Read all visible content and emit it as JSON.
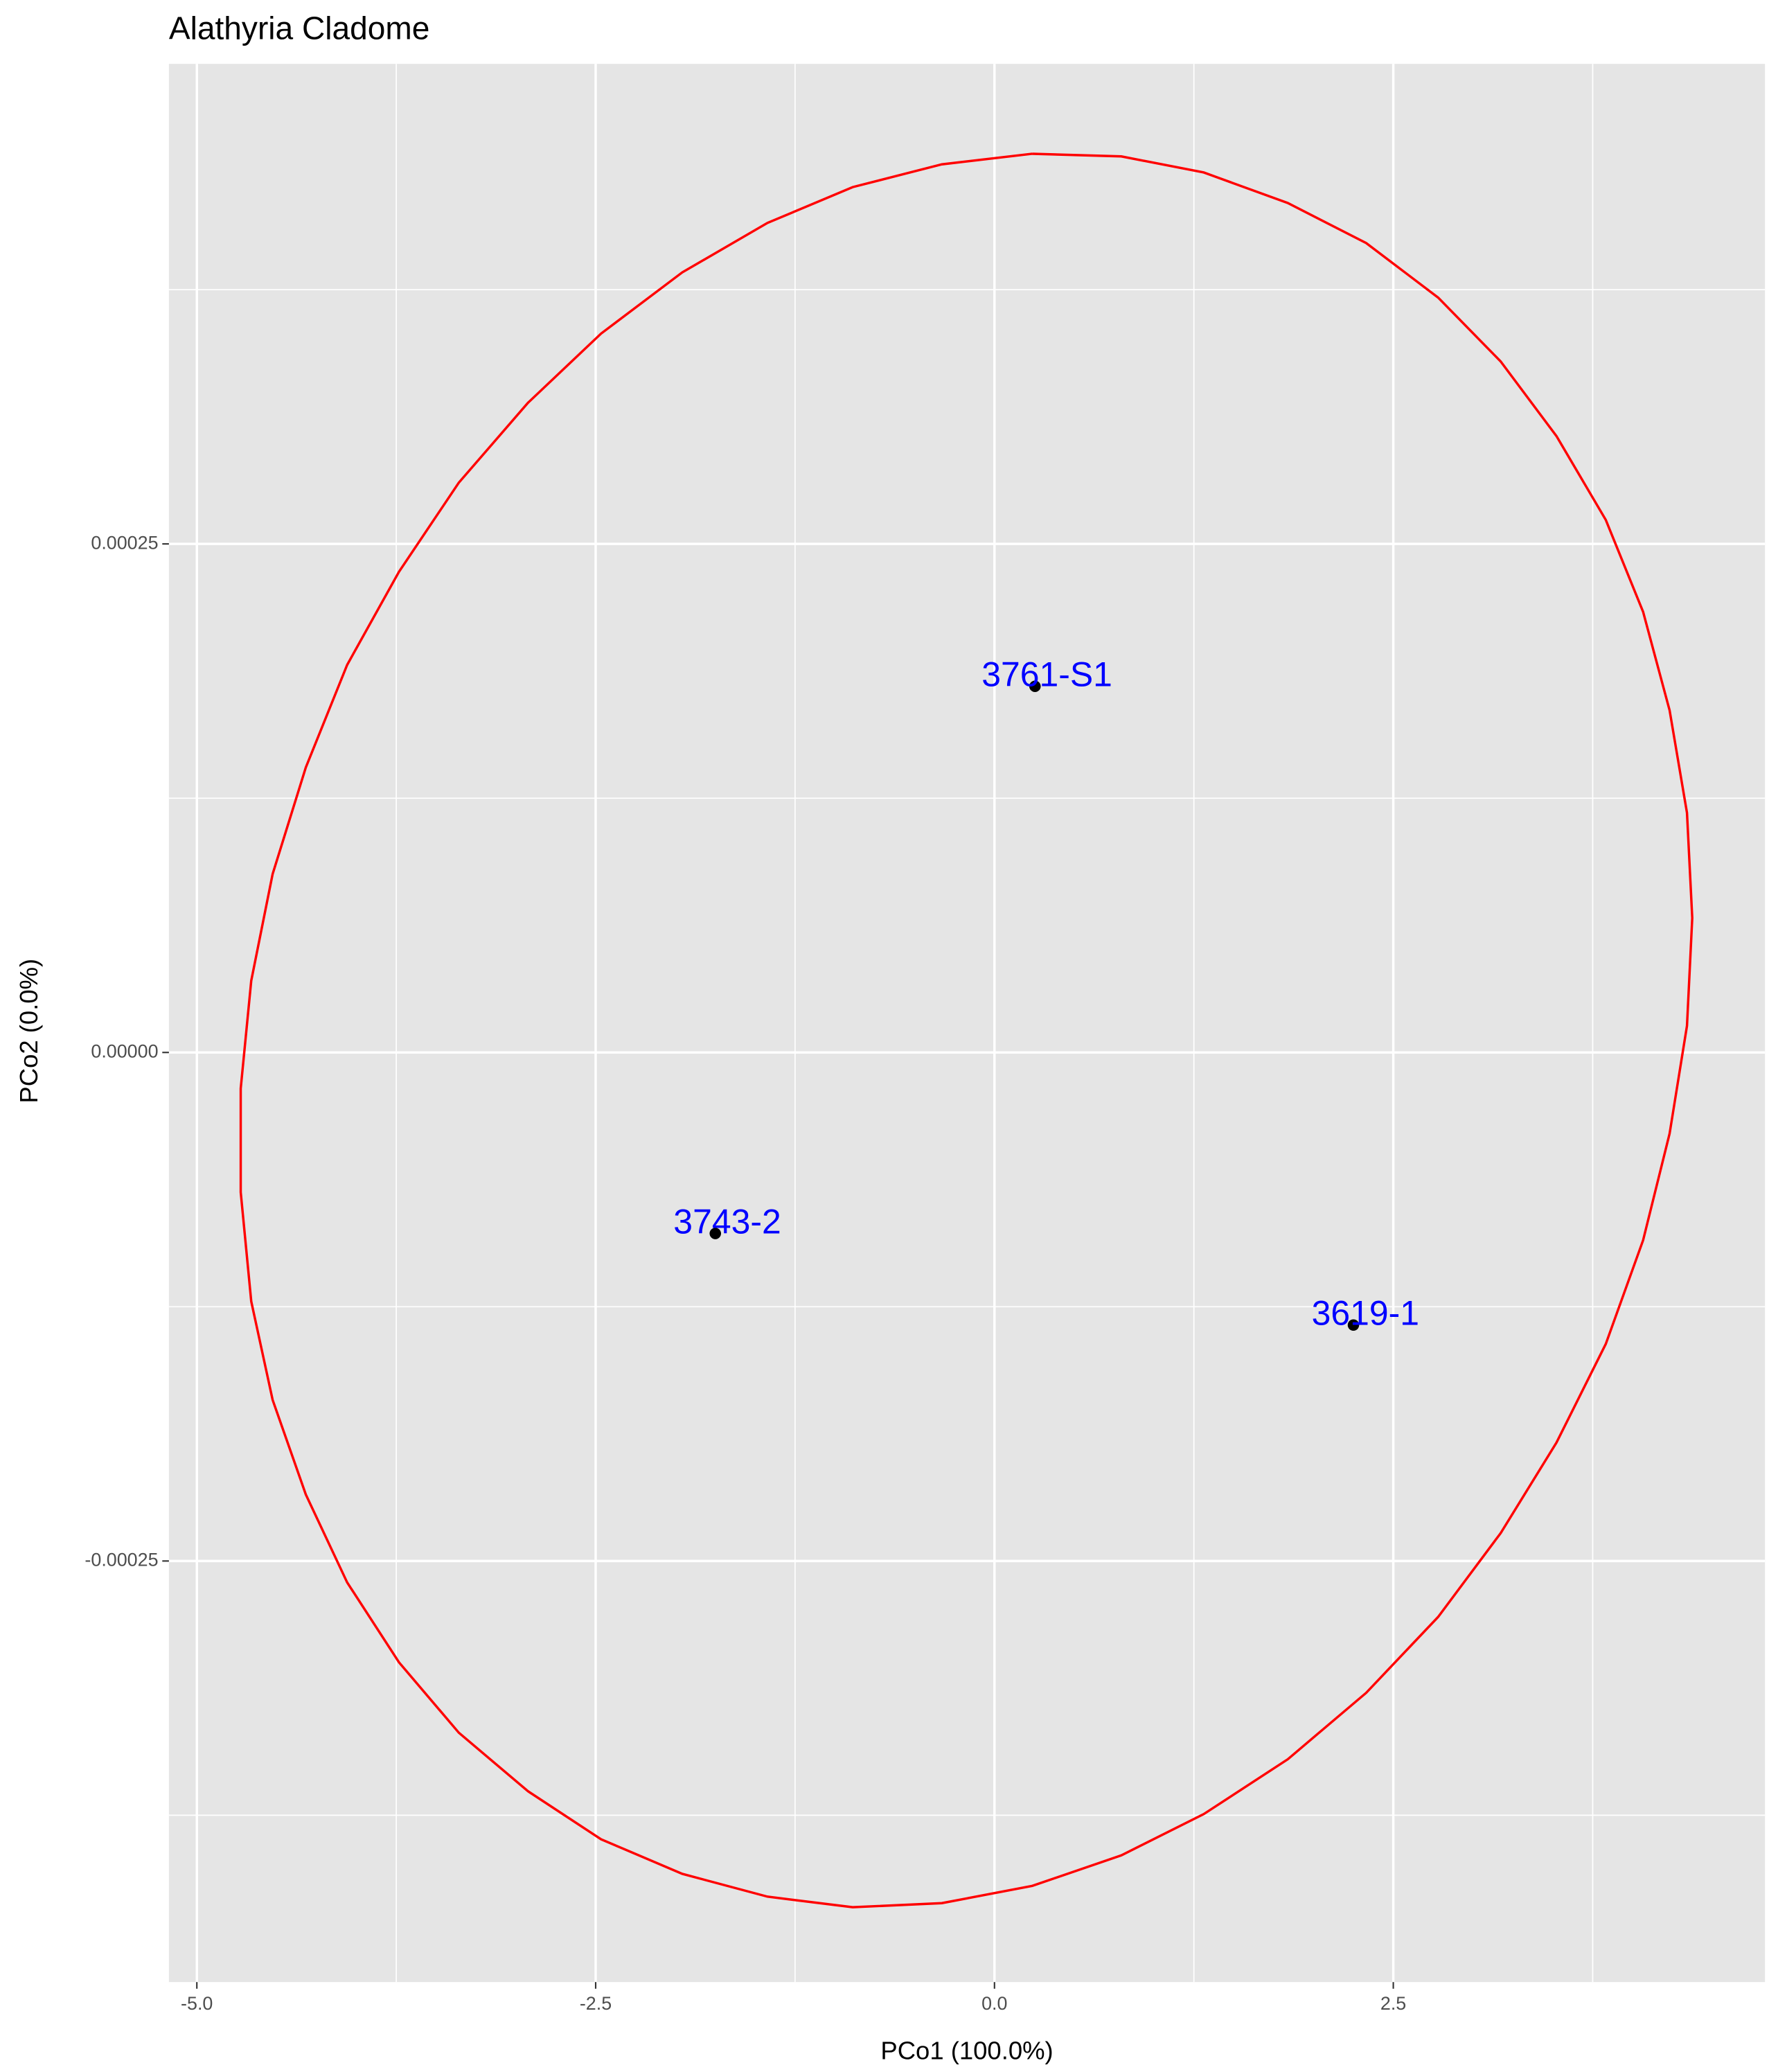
{
  "chart_data": {
    "type": "scatter",
    "title": "Alathyria Cladome",
    "xlabel": "PCo1 (100.0%)",
    "ylabel": "PCo2 (0.0%)",
    "xlim": [
      -5.175,
      4.83
    ],
    "ylim": [
      -0.000457,
      0.000486
    ],
    "xticks": [
      {
        "value": -5,
        "label": "-5.0"
      },
      -2.5,
      {
        "value": 0,
        "label": "0.0"
      },
      2.5
    ],
    "yticks": [
      -0.00025,
      {
        "value": 0,
        "label": "0.00000"
      },
      0.00025
    ],
    "grid": true,
    "points": {
      "labels": [
        "3761-S1",
        "3743-2",
        "3619-1"
      ],
      "x": [
        0.254,
        -1.75,
        2.25
      ],
      "y": [
        0.00018,
        -8.9e-05,
        -0.000134
      ],
      "color": "#000000",
      "label_color": "#0000ff"
    },
    "ellipse": {
      "color": "#ff0000",
      "x": [
        0.237,
        0.795,
        1.312,
        1.838,
        2.33,
        2.781,
        3.173,
        3.523,
        3.832,
        4.066,
        4.232,
        4.341,
        4.374,
        4.341,
        4.232,
        4.066,
        3.832,
        3.523,
        3.173,
        2.781,
        2.33,
        1.838,
        1.312,
        0.795,
        0.237,
        -0.33,
        -0.889,
        -1.423,
        -1.957,
        -2.466,
        -2.924,
        -3.358,
        -3.733,
        -4.058,
        -4.317,
        -4.525,
        -4.659,
        -4.725,
        -4.725,
        -4.659,
        -4.525,
        -4.317,
        -4.058,
        -3.733,
        -3.358,
        -2.924,
        -2.466,
        -1.957,
        -1.423,
        -0.889,
        -0.33,
        0.237
      ],
      "y": [
        0.0004418,
        0.0004405,
        0.0004326,
        0.0004176,
        0.0003979,
        0.0003711,
        0.0003397,
        0.000303,
        0.0002618,
        0.0002166,
        0.0001682,
        0.0001178,
        6.61e-05,
        1.31e-05,
        -3.99e-05,
        -9.23e-05,
        -0.0001433,
        -0.0001918,
        -0.0002363,
        -0.0002775,
        -0.0003148,
        -0.0003475,
        -0.0003744,
        -0.0003947,
        -0.0004097,
        -0.0004182,
        -0.0004202,
        -0.000415,
        -0.0004038,
        -0.0003868,
        -0.0003632,
        -0.0003344,
        -0.0002998,
        -0.0002605,
        -0.0002173,
        -0.0001708,
        -0.0001224,
        -6.87e-05,
        -1.77e-05,
        3.53e-05,
        8.77e-05,
        0.0001401,
        0.0001905,
        0.0002363,
        0.0002801,
        0.0003194,
        0.0003534,
        0.0003835,
        0.0004078,
        0.0004254,
        0.0004366,
        0.0004418
      ]
    }
  }
}
